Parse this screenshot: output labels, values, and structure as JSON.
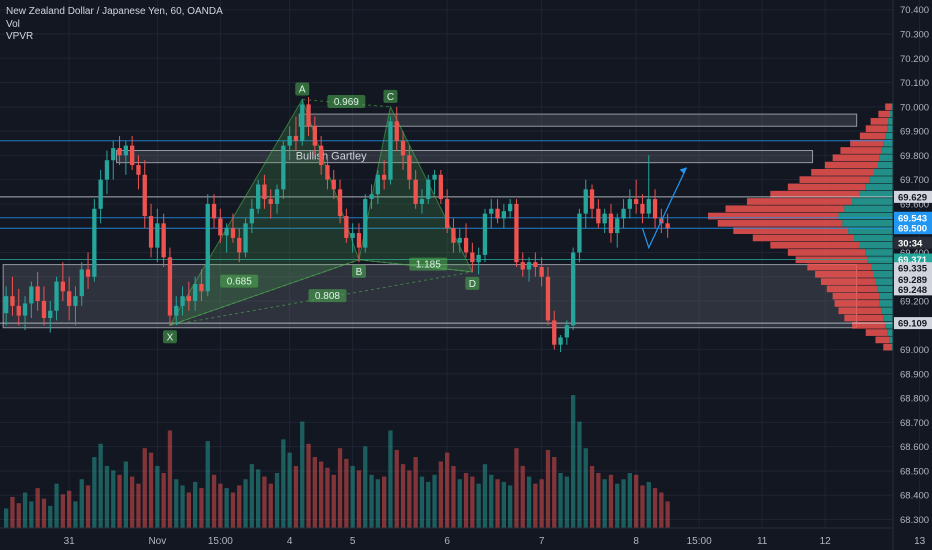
{
  "legend": {
    "symbol": "New Zealand Dollar / Japanese Yen, 60, OANDA",
    "vol": "Vol",
    "vpvr": "VPVR"
  },
  "colors": {
    "background": "#131722",
    "up": "#26a69a",
    "down": "#ef5350",
    "grid": "#1f2433",
    "axis_text": "#b2b5be",
    "pattern_fill": "#4caf50",
    "box_fill": "#787b86",
    "blue_line": "#2196f3"
  },
  "chart_data": {
    "type": "candlestick",
    "title": "New Zealand Dollar / Japanese Yen, 60, OANDA",
    "y_axis": {
      "ticks": [
        70.4,
        70.3,
        70.2,
        70.1,
        70.0,
        69.9,
        69.8,
        69.7,
        69.6,
        69.5,
        69.4,
        69.3,
        69.2,
        69.1,
        69.0,
        68.9,
        68.8,
        68.7,
        68.6,
        68.5,
        68.4,
        68.3
      ],
      "tick_labels": [
        "70.400",
        "70.300",
        "70.200",
        "70.100",
        "70.000",
        "69.900",
        "69.800",
        "69.700",
        "69.600",
        "69.500",
        "69.400",
        "69.300",
        "69.200",
        "69.100",
        "69.000",
        "68.900",
        "68.800",
        "68.700",
        "68.600",
        "68.500",
        "68.400",
        "68.300"
      ],
      "range": [
        68.265,
        70.44
      ],
      "price_labels": [
        {
          "value": 69.629,
          "text": "69.629",
          "style": "plain"
        },
        {
          "value": 69.543,
          "text": "69.543",
          "style": "blue"
        },
        {
          "value": 69.5,
          "text": "69.500",
          "style": "blue"
        },
        {
          "value": 69.44,
          "text": "30:34",
          "style": "dark"
        },
        {
          "value": 69.371,
          "text": "69.371",
          "style": "green"
        },
        {
          "value": 69.335,
          "text": "69.335",
          "style": "plain"
        },
        {
          "value": 69.289,
          "text": "69.289",
          "style": "plain"
        },
        {
          "value": 69.248,
          "text": "69.248",
          "style": "plain"
        },
        {
          "value": 69.109,
          "text": "69.109",
          "style": "plain"
        }
      ]
    },
    "x_axis": {
      "labels": [
        "31",
        "Nov",
        "15:00",
        "4",
        "5",
        "6",
        "7",
        "8",
        "15:00",
        "11",
        "12",
        "13"
      ],
      "label_bar_index": [
        10,
        24,
        34,
        45,
        55,
        70,
        85,
        100,
        110,
        120,
        130,
        145
      ]
    },
    "candles_ohlc": [
      [
        69.15,
        69.26,
        69.1,
        69.22
      ],
      [
        69.22,
        69.3,
        69.14,
        69.18
      ],
      [
        69.18,
        69.25,
        69.1,
        69.14
      ],
      [
        69.14,
        69.22,
        69.08,
        69.19
      ],
      [
        69.19,
        69.28,
        69.13,
        69.26
      ],
      [
        69.26,
        69.32,
        69.16,
        69.2
      ],
      [
        69.2,
        69.26,
        69.1,
        69.13
      ],
      [
        69.13,
        69.2,
        69.07,
        69.16
      ],
      [
        69.16,
        69.3,
        69.12,
        69.28
      ],
      [
        69.28,
        69.36,
        69.2,
        69.24
      ],
      [
        69.24,
        69.3,
        69.12,
        69.18
      ],
      [
        69.18,
        69.26,
        69.1,
        69.22
      ],
      [
        69.22,
        69.36,
        69.18,
        69.33
      ],
      [
        69.33,
        69.4,
        69.25,
        69.3
      ],
      [
        69.3,
        69.62,
        69.28,
        69.58
      ],
      [
        69.58,
        69.74,
        69.52,
        69.7
      ],
      [
        69.7,
        69.82,
        69.64,
        69.78
      ],
      [
        69.78,
        69.86,
        69.7,
        69.83
      ],
      [
        69.83,
        69.88,
        69.76,
        69.8
      ],
      [
        69.8,
        69.86,
        69.72,
        69.84
      ],
      [
        69.84,
        69.88,
        69.74,
        69.76
      ],
      [
        69.76,
        69.8,
        69.66,
        69.72
      ],
      [
        69.72,
        69.78,
        69.5,
        69.55
      ],
      [
        69.55,
        69.6,
        69.38,
        69.42
      ],
      [
        69.42,
        69.58,
        69.36,
        69.52
      ],
      [
        69.52,
        69.56,
        69.34,
        69.38
      ],
      [
        69.38,
        69.42,
        69.1,
        69.14
      ],
      [
        69.14,
        69.22,
        69.1,
        69.18
      ],
      [
        69.18,
        69.26,
        69.14,
        69.22
      ],
      [
        69.22,
        69.28,
        69.16,
        69.2
      ],
      [
        69.2,
        69.3,
        69.16,
        69.27
      ],
      [
        69.27,
        69.33,
        69.2,
        69.24
      ],
      [
        69.24,
        69.64,
        69.22,
        69.6
      ],
      [
        69.6,
        69.64,
        69.5,
        69.54
      ],
      [
        69.54,
        69.58,
        69.44,
        69.47
      ],
      [
        69.47,
        69.52,
        69.4,
        69.5
      ],
      [
        69.5,
        69.56,
        69.44,
        69.46
      ],
      [
        69.46,
        69.5,
        69.36,
        69.4
      ],
      [
        69.4,
        69.54,
        69.38,
        69.52
      ],
      [
        69.52,
        69.62,
        69.48,
        69.58
      ],
      [
        69.58,
        69.7,
        69.56,
        69.68
      ],
      [
        69.68,
        69.72,
        69.58,
        69.62
      ],
      [
        69.62,
        69.66,
        69.54,
        69.6
      ],
      [
        69.6,
        69.68,
        69.56,
        69.66
      ],
      [
        69.66,
        69.86,
        69.62,
        69.84
      ],
      [
        69.84,
        69.92,
        69.78,
        69.88
      ],
      [
        69.88,
        69.96,
        69.82,
        69.86
      ],
      [
        69.86,
        70.03,
        69.84,
        70.01
      ],
      [
        70.01,
        70.04,
        69.88,
        69.92
      ],
      [
        69.92,
        69.96,
        69.8,
        69.84
      ],
      [
        69.84,
        69.88,
        69.72,
        69.76
      ],
      [
        69.76,
        69.8,
        69.66,
        69.7
      ],
      [
        69.7,
        69.74,
        69.62,
        69.66
      ],
      [
        69.66,
        69.7,
        69.52,
        69.55
      ],
      [
        69.55,
        69.58,
        69.44,
        69.46
      ],
      [
        69.46,
        69.52,
        69.4,
        69.48
      ],
      [
        69.48,
        69.52,
        69.36,
        69.42
      ],
      [
        69.42,
        69.64,
        69.4,
        69.62
      ],
      [
        69.62,
        69.68,
        69.58,
        69.64
      ],
      [
        69.64,
        69.74,
        69.6,
        69.72
      ],
      [
        69.72,
        69.78,
        69.66,
        69.7
      ],
      [
        69.7,
        69.96,
        69.68,
        69.94
      ],
      [
        69.94,
        70.0,
        69.82,
        69.86
      ],
      [
        69.86,
        69.9,
        69.74,
        69.8
      ],
      [
        69.8,
        69.84,
        69.66,
        69.7
      ],
      [
        69.7,
        69.74,
        69.58,
        69.6
      ],
      [
        69.6,
        69.66,
        69.56,
        69.62
      ],
      [
        69.62,
        69.72,
        69.6,
        69.7
      ],
      [
        69.7,
        69.74,
        69.64,
        69.72
      ],
      [
        69.72,
        69.74,
        69.6,
        69.62
      ],
      [
        69.62,
        69.66,
        69.48,
        69.5
      ],
      [
        69.5,
        69.54,
        69.4,
        69.44
      ],
      [
        69.44,
        69.5,
        69.4,
        69.46
      ],
      [
        69.46,
        69.52,
        69.38,
        69.4
      ],
      [
        69.4,
        69.44,
        69.32,
        69.36
      ],
      [
        69.36,
        69.42,
        69.31,
        69.39
      ],
      [
        69.39,
        69.58,
        69.36,
        69.56
      ],
      [
        69.56,
        69.62,
        69.5,
        69.58
      ],
      [
        69.58,
        69.62,
        69.52,
        69.54
      ],
      [
        69.54,
        69.6,
        69.5,
        69.57
      ],
      [
        69.57,
        69.62,
        69.54,
        69.6
      ],
      [
        69.6,
        69.62,
        69.34,
        69.36
      ],
      [
        69.36,
        69.4,
        69.3,
        69.33
      ],
      [
        69.33,
        69.38,
        69.28,
        69.36
      ],
      [
        69.36,
        69.4,
        69.3,
        69.34
      ],
      [
        69.34,
        69.38,
        69.26,
        69.3
      ],
      [
        69.3,
        69.34,
        69.1,
        69.12
      ],
      [
        69.12,
        69.16,
        69.0,
        69.02
      ],
      [
        69.02,
        69.06,
        68.99,
        69.05
      ],
      [
        69.05,
        69.12,
        69.02,
        69.1
      ],
      [
        69.1,
        69.42,
        69.08,
        69.4
      ],
      [
        69.4,
        69.58,
        69.36,
        69.56
      ],
      [
        69.56,
        69.7,
        69.5,
        69.66
      ],
      [
        69.66,
        69.68,
        69.54,
        69.58
      ],
      [
        69.58,
        69.62,
        69.5,
        69.52
      ],
      [
        69.52,
        69.58,
        69.48,
        69.56
      ],
      [
        69.56,
        69.6,
        69.44,
        69.48
      ],
      [
        69.48,
        69.56,
        69.42,
        69.54
      ],
      [
        69.54,
        69.62,
        69.5,
        69.58
      ],
      [
        69.58,
        69.66,
        69.54,
        69.62
      ],
      [
        69.62,
        69.7,
        69.56,
        69.6
      ],
      [
        69.6,
        69.64,
        69.52,
        69.56
      ],
      [
        69.56,
        69.8,
        69.54,
        69.62
      ],
      [
        69.62,
        69.66,
        69.5,
        69.54
      ],
      [
        69.54,
        69.58,
        69.48,
        69.52
      ],
      [
        69.52,
        69.56,
        69.46,
        69.5
      ]
    ],
    "volumes": [
      22,
      35,
      28,
      40,
      30,
      45,
      33,
      25,
      50,
      38,
      42,
      30,
      55,
      48,
      80,
      95,
      70,
      65,
      60,
      75,
      58,
      50,
      90,
      85,
      70,
      62,
      110,
      55,
      48,
      40,
      52,
      45,
      98,
      60,
      50,
      45,
      40,
      48,
      55,
      72,
      66,
      58,
      50,
      62,
      100,
      85,
      70,
      120,
      95,
      80,
      75,
      68,
      60,
      90,
      78,
      70,
      65,
      92,
      60,
      55,
      58,
      110,
      88,
      72,
      65,
      80,
      58,
      52,
      60,
      75,
      85,
      70,
      55,
      62,
      58,
      50,
      72,
      60,
      55,
      52,
      48,
      90,
      70,
      58,
      50,
      55,
      88,
      80,
      62,
      58,
      150,
      120,
      90,
      70,
      62,
      55,
      60,
      50,
      55,
      62,
      60,
      48,
      52,
      45,
      40,
      30
    ],
    "volume_range": [
      0,
      150
    ],
    "harmonic_pattern": {
      "name": "Bullish Gartley",
      "points": [
        {
          "label": "X",
          "bar": 26,
          "price": 69.1
        },
        {
          "label": "A",
          "bar": 47,
          "price": 70.03
        },
        {
          "label": "B",
          "bar": 56,
          "price": 69.37
        },
        {
          "label": "C",
          "bar": 61,
          "price": 70.0
        },
        {
          "label": "D",
          "bar": 74,
          "price": 69.32
        }
      ],
      "ratios": [
        {
          "text": "0.969",
          "bar": 54,
          "price": 70.02
        },
        {
          "text": "1.185",
          "bar": 67,
          "price": 69.35
        },
        {
          "text": "0.685",
          "bar": 37,
          "price": 69.28
        },
        {
          "text": "0.808",
          "bar": 51,
          "price": 69.22
        }
      ]
    },
    "zones": [
      {
        "from": 69.92,
        "to": 69.97,
        "bar_start": 47,
        "bar_end": 135
      },
      {
        "from": 69.77,
        "to": 69.82,
        "bar_start": 18,
        "bar_end": 128
      },
      {
        "from": 69.09,
        "to": 69.35,
        "bar_start": 0,
        "bar_end": 135
      }
    ],
    "horizontal_lines": [
      {
        "value": 69.86,
        "color": "#2196f3"
      },
      {
        "value": 69.543,
        "color": "#2196f3"
      },
      {
        "value": 69.5,
        "color": "#2196f3"
      },
      {
        "value": 69.629,
        "color": "#d1d4dc"
      },
      {
        "value": 69.371,
        "color": "#26a69a"
      },
      {
        "value": 69.109,
        "color": "#d1d4dc"
      }
    ],
    "projection": [
      {
        "bar": 101,
        "price": 69.5
      },
      {
        "bar": 102,
        "price": 69.42
      },
      {
        "bar": 108,
        "price": 69.75
      }
    ],
    "vpvr_profile": [
      {
        "price": 70.0,
        "up": 2,
        "down": 6
      },
      {
        "price": 69.97,
        "up": 3,
        "down": 12
      },
      {
        "price": 69.94,
        "up": 5,
        "down": 18
      },
      {
        "price": 69.91,
        "up": 6,
        "down": 22
      },
      {
        "price": 69.88,
        "up": 8,
        "down": 26
      },
      {
        "price": 69.85,
        "up": 10,
        "down": 34
      },
      {
        "price": 69.82,
        "up": 12,
        "down": 42
      },
      {
        "price": 69.79,
        "up": 14,
        "down": 48
      },
      {
        "price": 69.76,
        "up": 16,
        "down": 54
      },
      {
        "price": 69.73,
        "up": 20,
        "down": 64
      },
      {
        "price": 69.7,
        "up": 24,
        "down": 72
      },
      {
        "price": 69.67,
        "up": 28,
        "down": 80
      },
      {
        "price": 69.64,
        "up": 34,
        "down": 92
      },
      {
        "price": 69.61,
        "up": 42,
        "down": 108
      },
      {
        "price": 69.58,
        "up": 50,
        "down": 122
      },
      {
        "price": 69.55,
        "up": 56,
        "down": 134
      },
      {
        "price": 69.52,
        "up": 52,
        "down": 128
      },
      {
        "price": 69.49,
        "up": 46,
        "down": 118
      },
      {
        "price": 69.46,
        "up": 40,
        "down": 104
      },
      {
        "price": 69.43,
        "up": 34,
        "down": 92
      },
      {
        "price": 69.4,
        "up": 28,
        "down": 80
      },
      {
        "price": 69.37,
        "up": 26,
        "down": 74
      },
      {
        "price": 69.34,
        "up": 22,
        "down": 66
      },
      {
        "price": 69.31,
        "up": 20,
        "down": 60
      },
      {
        "price": 69.28,
        "up": 18,
        "down": 56
      },
      {
        "price": 69.25,
        "up": 16,
        "down": 52
      },
      {
        "price": 69.22,
        "up": 14,
        "down": 48
      },
      {
        "price": 69.19,
        "up": 14,
        "down": 46
      },
      {
        "price": 69.16,
        "up": 12,
        "down": 44
      },
      {
        "price": 69.13,
        "up": 10,
        "down": 40
      },
      {
        "price": 69.1,
        "up": 8,
        "down": 34
      },
      {
        "price": 69.07,
        "up": 6,
        "down": 22
      },
      {
        "price": 69.04,
        "up": 4,
        "down": 14
      },
      {
        "price": 69.01,
        "up": 2,
        "down": 8
      }
    ]
  }
}
